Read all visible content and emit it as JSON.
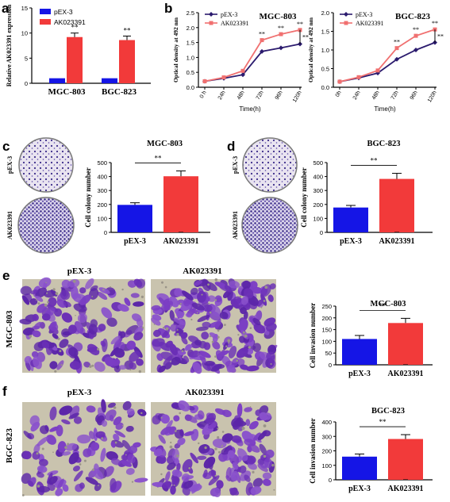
{
  "colors": {
    "blue": "#1515e6",
    "red": "#f23a3a",
    "navy": "#2b1b6e",
    "salmon": "#f07070",
    "stain": "#6a2fb6",
    "membrane": "#c9c3ae",
    "plate_bg": "#e6e1ee"
  },
  "chart_data": [
    {
      "id": "a",
      "panel": "a",
      "type": "bar",
      "ylabel": "Relative AK023391 expression",
      "groups": [
        "MGC-803",
        "BGC-823"
      ],
      "series": [
        {
          "name": "pEX-3",
          "values": [
            1.0,
            1.0
          ],
          "err": [
            0,
            0
          ]
        },
        {
          "name": "AK023391",
          "values": [
            9.2,
            8.6
          ],
          "err": [
            0.8,
            0.8
          ]
        }
      ],
      "yticks": [
        "0",
        "5",
        "10",
        "15"
      ],
      "ylim": [
        0,
        15
      ],
      "significance": [
        "**",
        "**"
      ],
      "legend": "top-left"
    },
    {
      "id": "b1",
      "panel": "b",
      "type": "line",
      "title": "MGC-803",
      "xlabel": "Time(h)",
      "ylabel": "Optical density at 492 nm",
      "x": [
        "0 h",
        "24h",
        "48h",
        "72h",
        "96h",
        "120h"
      ],
      "yticks": [
        "0.0",
        "0.5",
        "1.0",
        "1.5",
        "2.0",
        "2.5"
      ],
      "ylim": [
        0,
        2.5
      ],
      "series": [
        {
          "name": "pEX-3",
          "values": [
            0.2,
            0.3,
            0.42,
            1.2,
            1.32,
            1.45
          ]
        },
        {
          "name": "AK023391",
          "values": [
            0.2,
            0.33,
            0.55,
            1.58,
            1.78,
            1.92
          ]
        }
      ],
      "significance": [
        "**",
        "**",
        "**"
      ],
      "bracket_label": "**",
      "legend": "top-left"
    },
    {
      "id": "b2",
      "panel": "b",
      "type": "line",
      "title": "BGC-823",
      "xlabel": "Time(h)",
      "ylabel": "Optical density at 492 nm",
      "x": [
        "0h",
        "24h",
        "48h",
        "72h",
        "96h",
        "120h"
      ],
      "yticks": [
        "0.0",
        "0.5",
        "1.0",
        "1.5",
        "2.0"
      ],
      "ylim": [
        0,
        2.0
      ],
      "series": [
        {
          "name": "pEX-3",
          "values": [
            0.15,
            0.25,
            0.38,
            0.75,
            1.0,
            1.2
          ]
        },
        {
          "name": "AK023391",
          "values": [
            0.15,
            0.27,
            0.45,
            1.05,
            1.38,
            1.55
          ]
        }
      ],
      "significance": [
        "**",
        "**",
        "**"
      ],
      "bracket_label": "**",
      "legend": "top-left"
    },
    {
      "id": "c",
      "panel": "c",
      "type": "bar",
      "title": "MGC-803",
      "ylabel": "Cell colony number",
      "categories": [
        "pEX-3",
        "AK023391"
      ],
      "values": [
        197,
        402
      ],
      "err": [
        15,
        38
      ],
      "yticks": [
        "0",
        "100",
        "200",
        "300",
        "400",
        "500"
      ],
      "ylim": [
        0,
        500
      ],
      "significance": "**",
      "plate_labels": [
        "pEX-3",
        "AK023391"
      ]
    },
    {
      "id": "d",
      "panel": "d",
      "type": "bar",
      "title": "BGC-823",
      "ylabel": "Cell colony number",
      "categories": [
        "pEX-3",
        "AK023391"
      ],
      "values": [
        178,
        383
      ],
      "err": [
        15,
        40
      ],
      "yticks": [
        "0",
        "100",
        "200",
        "300",
        "400",
        "500"
      ],
      "ylim": [
        0,
        500
      ],
      "significance": "**",
      "plate_labels": [
        "pEX-3",
        "AK023391"
      ]
    },
    {
      "id": "e",
      "panel": "e",
      "type": "bar",
      "title": "MGC-803",
      "ylabel": "Cell invasion number",
      "categories": [
        "pEX-3",
        "AK023391"
      ],
      "values": [
        110,
        178
      ],
      "err": [
        15,
        20
      ],
      "yticks": [
        "0",
        "50",
        "100",
        "150",
        "200",
        "250"
      ],
      "ylim": [
        0,
        250
      ],
      "significance": "**",
      "image_labels": [
        "pEX-3",
        "AK023391"
      ],
      "row_label": "MGC-803"
    },
    {
      "id": "f",
      "panel": "f",
      "type": "bar",
      "title": "BGC-823",
      "ylabel": "Cell invasion number",
      "categories": [
        "pEX-3",
        "AK023391"
      ],
      "values": [
        160,
        282
      ],
      "err": [
        18,
        30
      ],
      "yticks": [
        "0",
        "100",
        "200",
        "300",
        "400"
      ],
      "ylim": [
        0,
        400
      ],
      "significance": "**",
      "image_labels": [
        "pEX-3",
        "AK023391"
      ],
      "row_label": "BGC-823"
    }
  ]
}
